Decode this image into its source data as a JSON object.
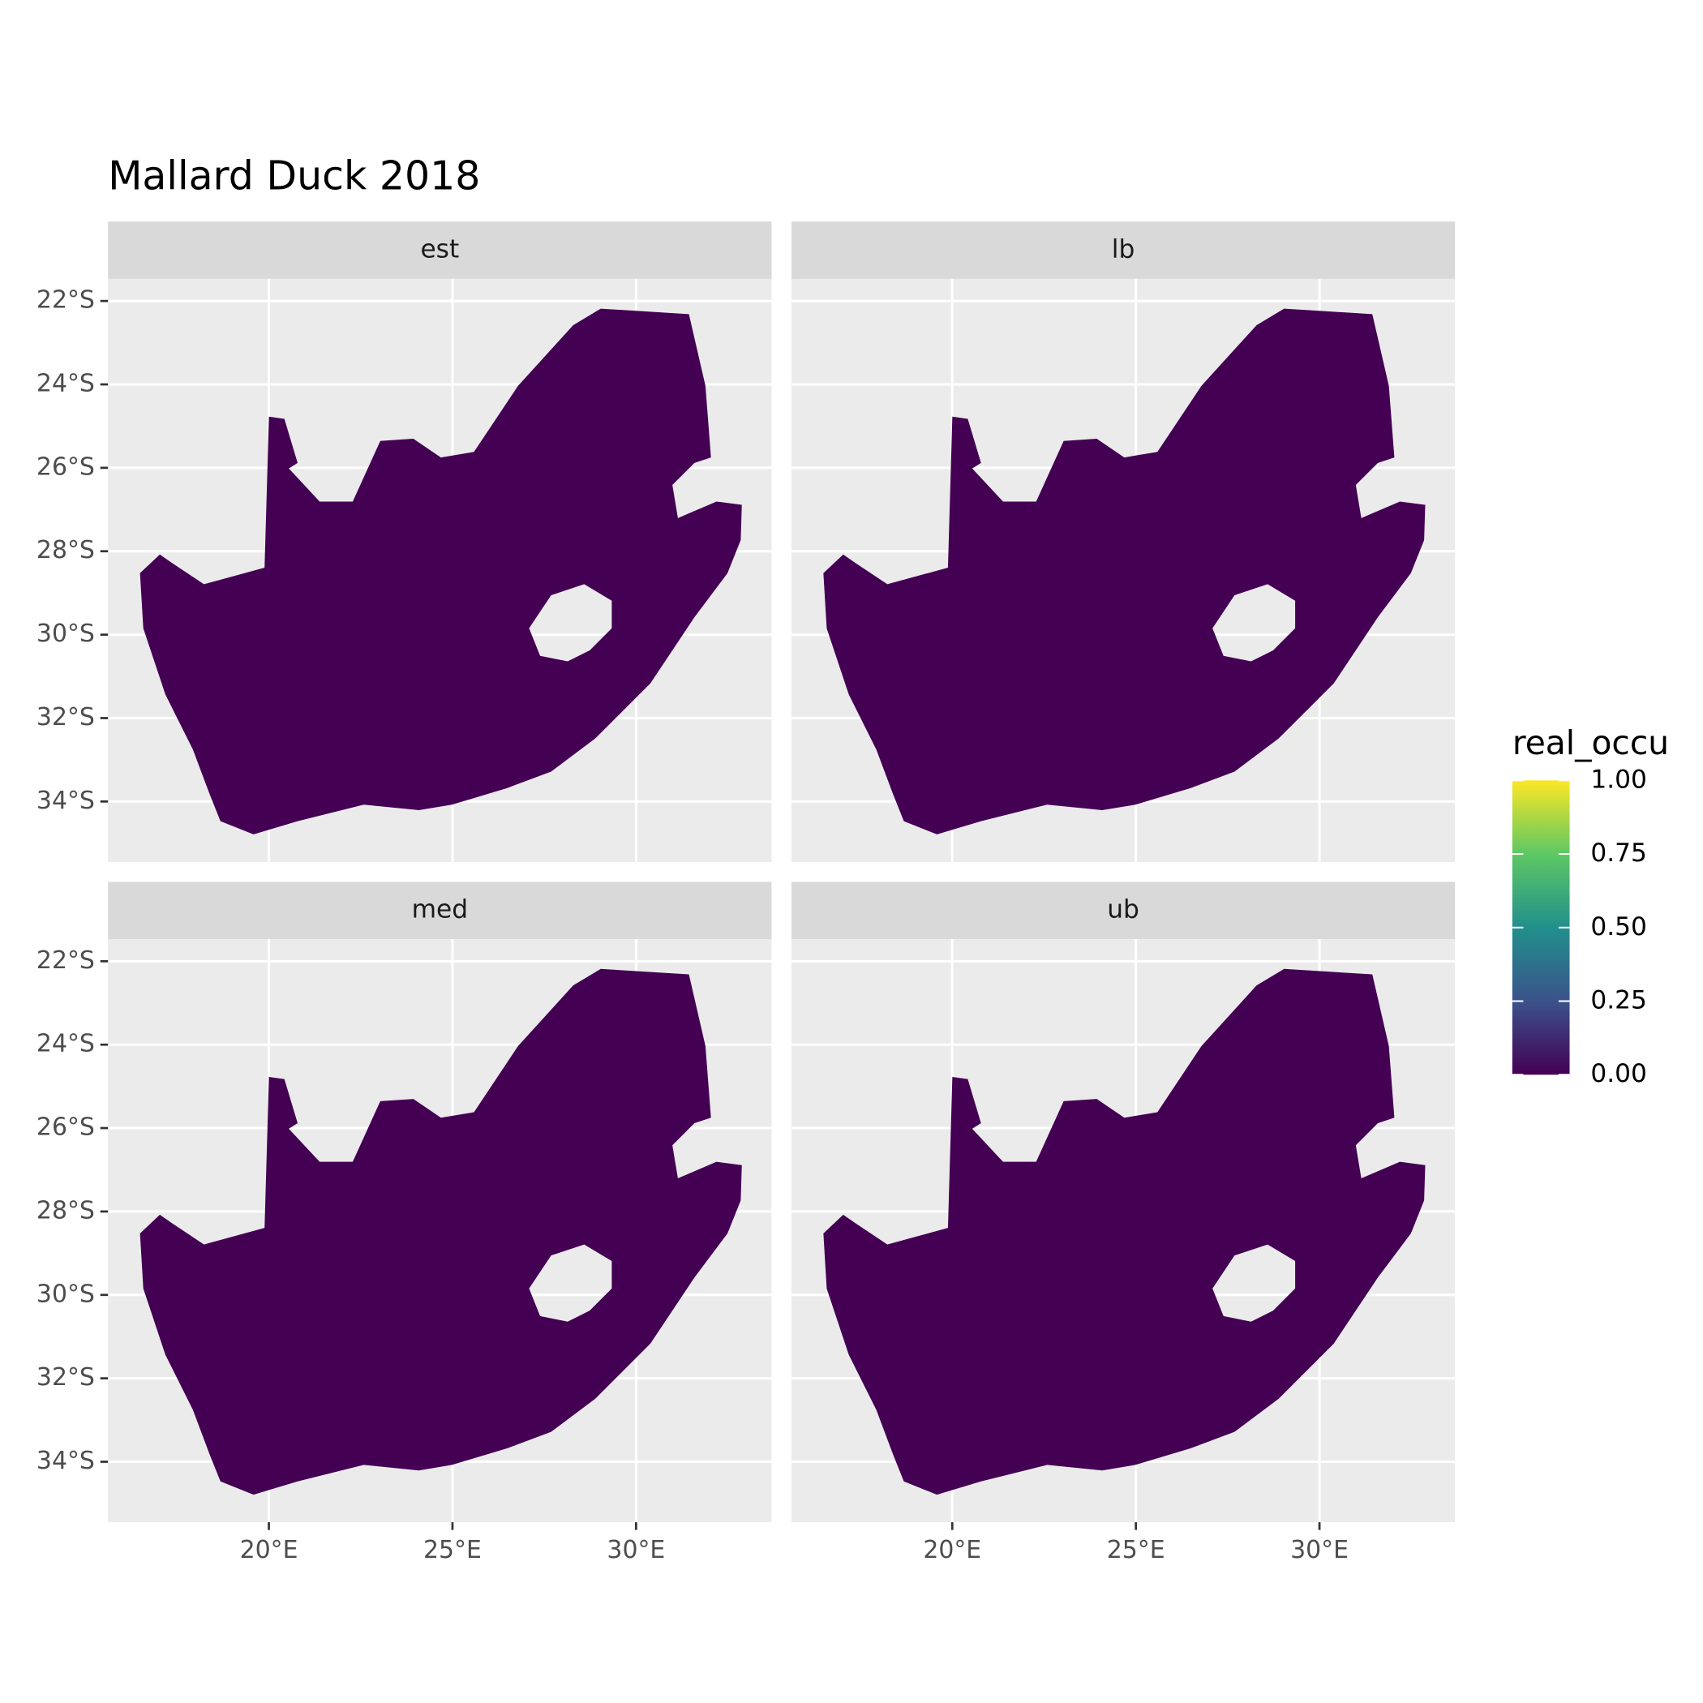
{
  "chart_data": {
    "type": "raster-map",
    "title": "Mallard Duck 2018",
    "facets": [
      "est",
      "lb",
      "med",
      "ub"
    ],
    "xlim": [
      15.62,
      33.69
    ],
    "ylim": [
      -35.45,
      -21.47
    ],
    "xticks": [
      {
        "value": 20,
        "label": "20°E"
      },
      {
        "value": 25,
        "label": "25°E"
      },
      {
        "value": 30,
        "label": "30°E"
      }
    ],
    "yticks": [
      {
        "value": -22,
        "label": "22°S"
      },
      {
        "value": -24,
        "label": "24°S"
      },
      {
        "value": -26,
        "label": "26°S"
      },
      {
        "value": -28,
        "label": "28°S"
      },
      {
        "value": -30,
        "label": "30°S"
      },
      {
        "value": -32,
        "label": "32°S"
      },
      {
        "value": -34,
        "label": "34°S"
      }
    ],
    "grid": true,
    "legend": {
      "title": "real_occu",
      "limits": [
        0,
        1
      ],
      "ticks": [
        {
          "value": 0,
          "label": "0.00"
        },
        {
          "value": 0.25,
          "label": "0.25"
        },
        {
          "value": 0.5,
          "label": "0.50"
        },
        {
          "value": 0.75,
          "label": "0.75"
        },
        {
          "value": 1,
          "label": "1.00"
        }
      ],
      "colors": [
        "#440154",
        "#3b528b",
        "#21908c",
        "#5dc863",
        "#fde725"
      ]
    },
    "fill_color": "#440154"
  }
}
